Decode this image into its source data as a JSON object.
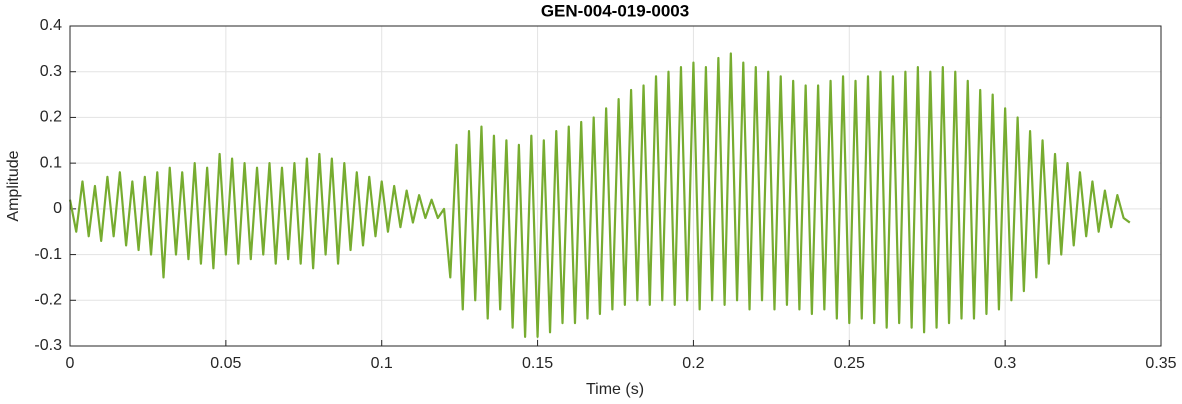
{
  "chart_data": {
    "type": "line",
    "title": "GEN-004-019-0003",
    "x_label": "Time (s)",
    "y_label": "Amplitude",
    "xlim": [
      0,
      0.35
    ],
    "xticks": [
      0,
      0.05,
      0.1,
      0.15,
      0.2,
      0.25,
      0.3,
      0.35
    ],
    "ylim": [
      -0.3,
      0.4
    ],
    "yticks": [
      -0.3,
      -0.2,
      -0.1,
      0,
      0.1,
      0.2,
      0.3,
      0.4
    ],
    "grid": true,
    "x": [
      0,
      0.002,
      0.004,
      0.006,
      0.008,
      0.01,
      0.012,
      0.014,
      0.016,
      0.018,
      0.02,
      0.022,
      0.024,
      0.026,
      0.028,
      0.03,
      0.032,
      0.034,
      0.036,
      0.038,
      0.04,
      0.042,
      0.044,
      0.046,
      0.048,
      0.05,
      0.052,
      0.054,
      0.056,
      0.058,
      0.06,
      0.062,
      0.064,
      0.066,
      0.068,
      0.07,
      0.072,
      0.074,
      0.076,
      0.078,
      0.08,
      0.082,
      0.084,
      0.086,
      0.088,
      0.09,
      0.092,
      0.094,
      0.096,
      0.098,
      0.1,
      0.102,
      0.104,
      0.106,
      0.108,
      0.11,
      0.112,
      0.114,
      0.116,
      0.118,
      0.12,
      0.122,
      0.124,
      0.126,
      0.128,
      0.13,
      0.132,
      0.134,
      0.136,
      0.138,
      0.14,
      0.142,
      0.144,
      0.146,
      0.148,
      0.15,
      0.152,
      0.154,
      0.156,
      0.158,
      0.16,
      0.162,
      0.164,
      0.166,
      0.168,
      0.17,
      0.172,
      0.174,
      0.176,
      0.178,
      0.18,
      0.182,
      0.184,
      0.186,
      0.188,
      0.19,
      0.192,
      0.194,
      0.196,
      0.198,
      0.2,
      0.202,
      0.204,
      0.206,
      0.208,
      0.21,
      0.212,
      0.214,
      0.216,
      0.218,
      0.22,
      0.222,
      0.224,
      0.226,
      0.228,
      0.23,
      0.232,
      0.234,
      0.236,
      0.238,
      0.24,
      0.242,
      0.244,
      0.246,
      0.248,
      0.25,
      0.252,
      0.254,
      0.256,
      0.258,
      0.26,
      0.262,
      0.264,
      0.266,
      0.268,
      0.27,
      0.272,
      0.274,
      0.276,
      0.278,
      0.28,
      0.282,
      0.284,
      0.286,
      0.288,
      0.29,
      0.292,
      0.294,
      0.296,
      0.298,
      0.3,
      0.302,
      0.304,
      0.306,
      0.308,
      0.31,
      0.312,
      0.314,
      0.316,
      0.318,
      0.32,
      0.322,
      0.324,
      0.326,
      0.328,
      0.33,
      0.332,
      0.334,
      0.336,
      0.338,
      0.34
    ],
    "series": [
      {
        "color": "#77ac30",
        "values": [
          0.02,
          -0.05,
          0.06,
          -0.06,
          0.05,
          -0.07,
          0.07,
          -0.06,
          0.08,
          -0.08,
          0.06,
          -0.09,
          0.07,
          -0.1,
          0.08,
          -0.15,
          0.09,
          -0.1,
          0.08,
          -0.11,
          0.1,
          -0.12,
          0.09,
          -0.13,
          0.12,
          -0.1,
          0.11,
          -0.12,
          0.1,
          -0.11,
          0.09,
          -0.1,
          0.1,
          -0.12,
          0.09,
          -0.11,
          0.1,
          -0.12,
          0.11,
          -0.13,
          0.12,
          -0.1,
          0.11,
          -0.12,
          0.1,
          -0.09,
          0.08,
          -0.08,
          0.07,
          -0.06,
          0.06,
          -0.05,
          0.05,
          -0.04,
          0.04,
          -0.03,
          0.03,
          -0.02,
          0.02,
          -0.02,
          0,
          -0.15,
          0.14,
          -0.22,
          0.17,
          -0.2,
          0.18,
          -0.24,
          0.16,
          -0.22,
          0.15,
          -0.26,
          0.14,
          -0.28,
          0.16,
          -0.28,
          0.15,
          -0.27,
          0.17,
          -0.25,
          0.18,
          -0.25,
          0.19,
          -0.24,
          0.2,
          -0.23,
          0.22,
          -0.22,
          0.24,
          -0.21,
          0.26,
          -0.2,
          0.27,
          -0.21,
          0.29,
          -0.2,
          0.3,
          -0.21,
          0.31,
          -0.2,
          0.32,
          -0.22,
          0.31,
          -0.2,
          0.33,
          -0.21,
          0.34,
          -0.2,
          0.32,
          -0.22,
          0.31,
          -0.2,
          0.3,
          -0.22,
          0.29,
          -0.21,
          0.28,
          -0.22,
          0.27,
          -0.23,
          0.27,
          -0.22,
          0.28,
          -0.24,
          0.29,
          -0.25,
          0.28,
          -0.24,
          0.29,
          -0.25,
          0.3,
          -0.26,
          0.29,
          -0.25,
          0.3,
          -0.26,
          0.31,
          -0.27,
          0.3,
          -0.26,
          0.31,
          -0.25,
          0.3,
          -0.24,
          0.28,
          -0.24,
          0.26,
          -0.23,
          0.25,
          -0.22,
          0.22,
          -0.2,
          0.2,
          -0.18,
          0.17,
          -0.15,
          0.15,
          -0.12,
          0.12,
          -0.1,
          0.1,
          -0.08,
          0.08,
          -0.06,
          0.06,
          -0.05,
          0.04,
          -0.04,
          0.03,
          -0.02,
          -0.03
        ]
      }
    ]
  }
}
